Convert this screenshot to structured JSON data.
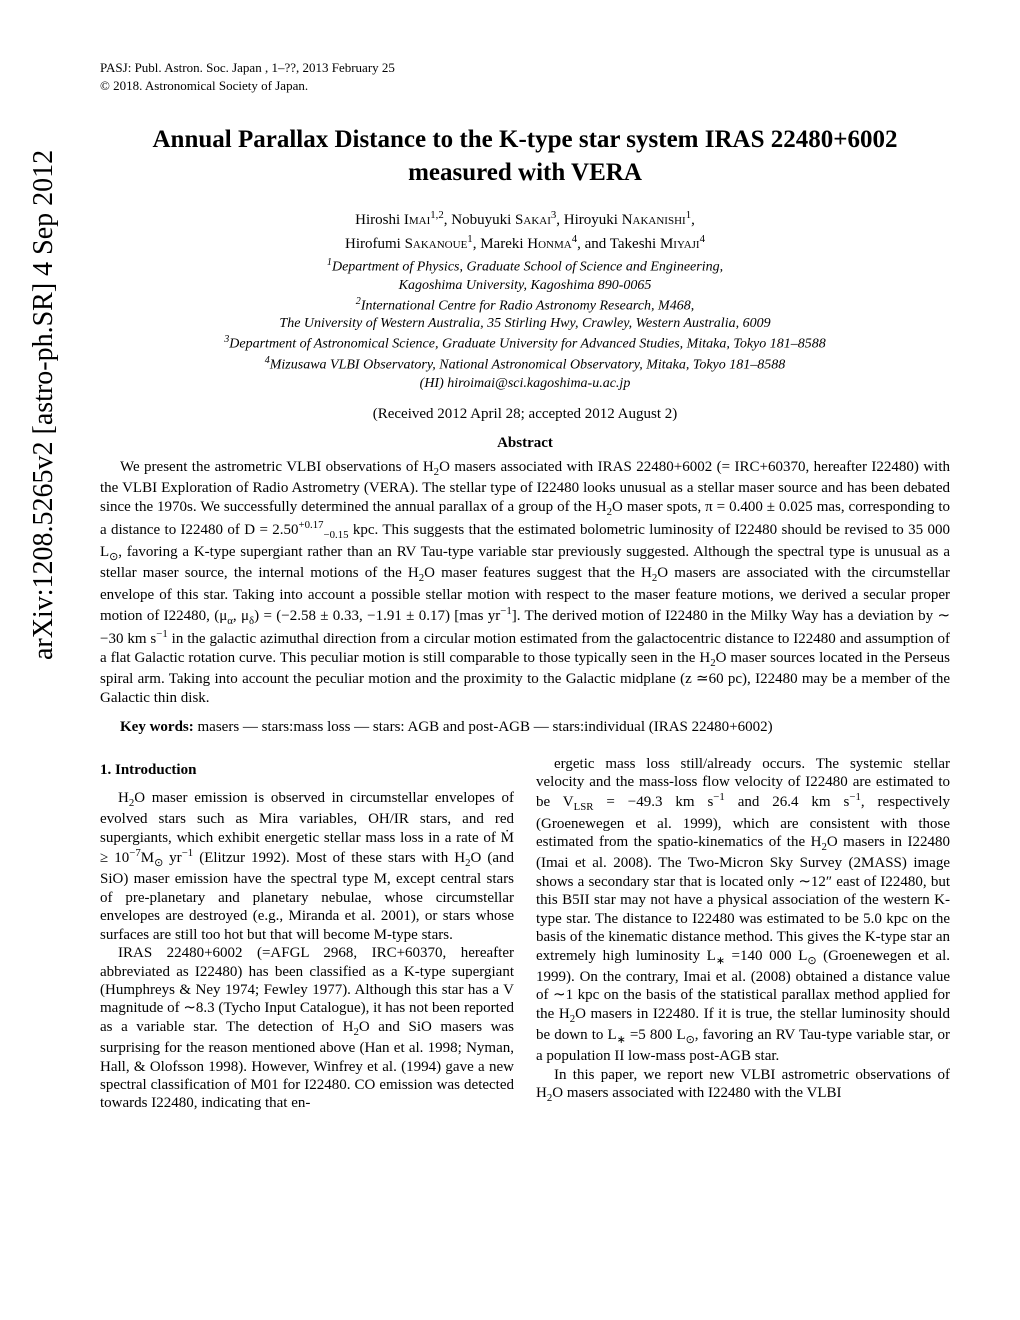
{
  "arxiv_stamp": "arXiv:1208.5265v2  [astro-ph.SR]  4 Sep 2012",
  "running_head": "PASJ: Publ. Astron. Soc. Japan , 1–??, 2013 February 25",
  "copyright": "© 2018. Astronomical Society of Japan.",
  "title": "Annual Parallax Distance to the K-type star system IRAS 22480+6002 measured with VERA",
  "authors_line1_pre": "Hiroshi ",
  "authors_line1_sc1": "Imai",
  "authors_line1_sup1": "1,2",
  "authors_line1_mid1": ", Nobuyuki ",
  "authors_line1_sc2": "Sakai",
  "authors_line1_sup2": "3",
  "authors_line1_mid2": ", Hiroyuki ",
  "authors_line1_sc3": "Nakanishi",
  "authors_line1_sup3": "1",
  "authors_line1_tail": ",",
  "authors_line2_pre": "Hirofumi ",
  "authors_line2_sc1": "Sakanoue",
  "authors_line2_sup1": "1",
  "authors_line2_mid1": ", Mareki ",
  "authors_line2_sc2": "Honma",
  "authors_line2_sup2": "4",
  "authors_line2_mid2": ", and Takeshi ",
  "authors_line2_sc3": "Miyaji",
  "authors_line2_sup3": "4",
  "affil1_sup": "1",
  "affil1": "Department of Physics, Graduate School of Science and Engineering,",
  "affil1b": "Kagoshima University, Kagoshima 890-0065",
  "affil2_sup": "2",
  "affil2": "International Centre for Radio Astronomy Research, M468,",
  "affil2b": "The University of Western Australia, 35 Stirling Hwy, Crawley, Western Australia, 6009",
  "affil3_sup": "3",
  "affil3": "Department of Astronomical Science, Graduate University for Advanced Studies, Mitaka, Tokyo 181–8588",
  "affil4_sup": "4",
  "affil4": "Mizusawa VLBI Observatory, National Astronomical Observatory, Mitaka, Tokyo 181–8588",
  "email": "(HI) hiroimai@sci.kagoshima-u.ac.jp",
  "dates": "(Received 2012 April 28; accepted 2012 August 2)",
  "abstract_head": "Abstract",
  "abstract_html": "We present the astrometric VLBI observations of H<sub>2</sub>O masers associated with IRAS 22480+6002 (= IRC+60370, hereafter I22480) with the VLBI Exploration of Radio Astrometry (VERA). The stellar type of I22480 looks unusual as a stellar maser source and has been debated since the 1970s. We successfully determined the annual parallax of a group of the H<sub>2</sub>O maser spots, π = 0.400 ± 0.025 mas, corresponding to a distance to I22480 of D = 2.50<sup>+0.17</sup><sub>−0.15</sub> kpc. This suggests that the estimated bolometric luminosity of I22480 should be revised to 35 000 L<sub>⊙</sub>, favoring a K-type supergiant rather than an RV Tau-type variable star previously suggested. Although the spectral type is unusual as a stellar maser source, the internal motions of the H<sub>2</sub>O maser features suggest that the H<sub>2</sub>O masers are associated with the circumstellar envelope of this star. Taking into account a possible stellar motion with respect to the maser feature motions, we derived a secular proper motion of I22480, (μ<sub>α</sub>, μ<sub>δ</sub>) = (−2.58 ± 0.33, −1.91 ± 0.17) [mas yr<sup>−1</sup>]. The derived motion of I22480 in the Milky Way has a deviation by ∼ −30 km s<sup>−1</sup> in the galactic azimuthal direction from a circular motion estimated from the galactocentric distance to I22480 and assumption of a flat Galactic rotation curve. This peculiar motion is still comparable to those typically seen in the H<sub>2</sub>O maser sources located in the Perseus spiral arm. Taking into account the peculiar motion and the proximity to the Galactic midplane (z ≃60 pc), I22480 may be a member of the Galactic thin disk.",
  "keywords_html": "<b>Key words:</b> masers — stars:mass loss — stars: AGB and post-AGB — stars:individual (IRAS 22480+6002)",
  "sec1_head": "1.   Introduction",
  "col_left_p1_html": "H<sub>2</sub>O maser emission is observed in circumstellar envelopes of evolved stars such as Mira variables, OH/IR stars, and red supergiants, which exhibit energetic stellar mass loss in a rate of Ṁ ≥ 10<sup>−7</sup>M<sub>⊙</sub> yr<sup>−1</sup> (Elitzur 1992). Most of these stars with H<sub>2</sub>O (and SiO) maser emission have the spectral type M, except central stars of pre-planetary and planetary nebulae, whose circumstellar envelopes are destroyed (e.g., Miranda et al. 2001), or stars whose surfaces are still too hot but that will become M-type stars.",
  "col_left_p2_html": "IRAS 22480+6002 (=AFGL 2968, IRC+60370, hereafter abbreviated as I22480) has been classified as a K-type supergiant (Humphreys & Ney 1974; Fewley 1977). Although this star has a V magnitude of ∼8.3 (Tycho Input Catalogue), it has not been reported as a variable star. The detection of H<sub>2</sub>O and SiO masers was surprising for the reason mentioned above (Han et al. 1998; Nyman, Hall, & Olofsson 1998). However, Winfrey et al. (1994) gave a new spectral classification of M01 for I22480. CO emission was detected towards I22480, indicating that en-",
  "col_right_p1_html": "ergetic mass loss still/already occurs. The systemic stellar velocity and the mass-loss flow velocity of I22480 are estimated to be V<sub>LSR</sub> = −49.3 km s<sup>−1</sup> and 26.4 km s<sup>−1</sup>, respectively (Groenewegen et al. 1999), which are consistent with those estimated from the spatio-kinematics of the H<sub>2</sub>O masers in I22480 (Imai et al. 2008). The Two-Micron Sky Survey (2MASS) image shows a secondary star that is located only ∼12″ east of I22480, but this B5II star may not have a physical association of the western K-type star. The distance to I22480 was estimated to be 5.0 kpc on the basis of the kinematic distance method. This gives the K-type star an extremely high luminosity L<sub>∗</sub> =140 000 L<sub>⊙</sub> (Groenewegen et al. 1999). On the contrary, Imai et al. (2008) obtained a distance value of ∼1 kpc on the basis of the statistical parallax method applied for the H<sub>2</sub>O masers in I22480. If it is true, the stellar luminosity should be down to L<sub>∗</sub> =5 800 L<sub>⊙</sub>, favoring an RV Tau-type variable star, or a population II low-mass post-AGB star.",
  "col_right_p2_html": "In this paper, we report new VLBI astrometric observations of H<sub>2</sub>O masers associated with I22480 with the VLBI"
}
